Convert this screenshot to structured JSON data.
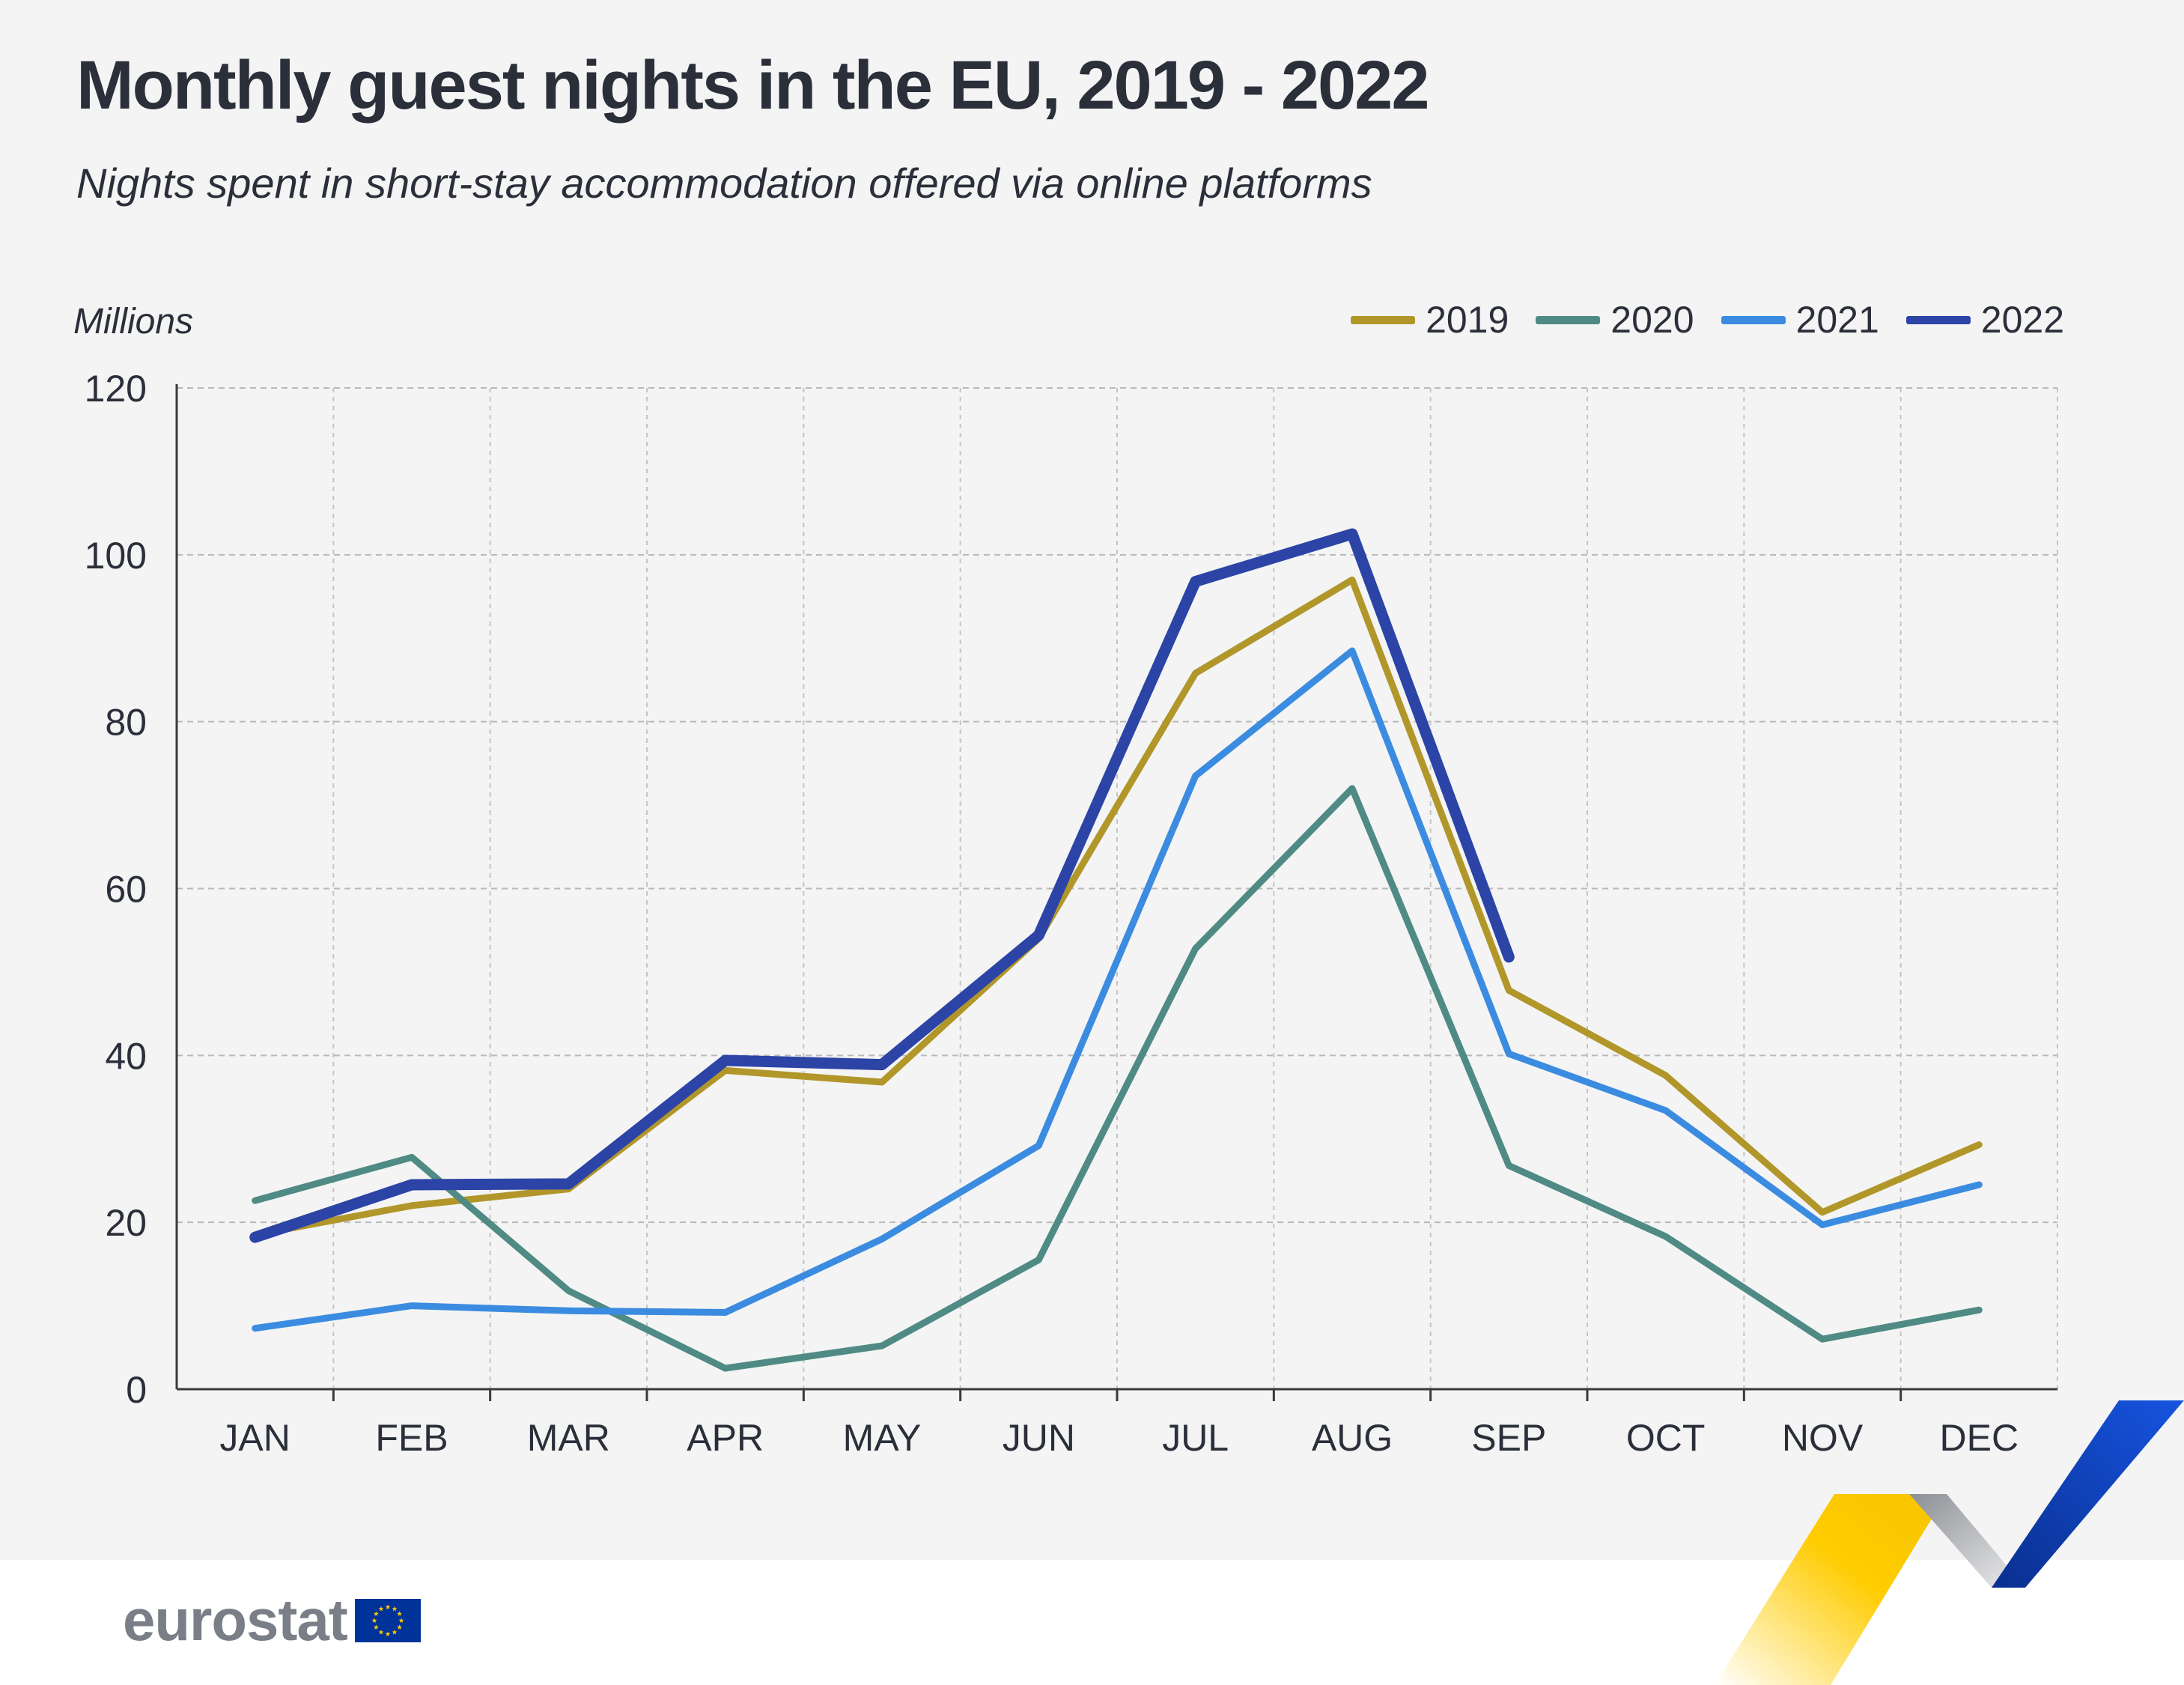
{
  "header": {
    "title": "Monthly guest nights in the EU, 2019 - 2022",
    "subtitle": "Nights spent in short-stay accommodation offered via online platforms"
  },
  "brand": {
    "logo_text": "eurostat",
    "colors": {
      "flag_blue": "#003399",
      "flag_star": "#ffcc00",
      "ribbon_yellow": "#ffcc00",
      "ribbon_blue": "#0e47cb",
      "ribbon_grey": "#a7a9ad"
    }
  },
  "chart_data": {
    "type": "line",
    "title": "Monthly guest nights in the EU, 2019 - 2022",
    "subtitle": "Nights spent in short-stay accommodation offered via online platforms",
    "ylabel": "Millions",
    "xlabel": "",
    "ylim": [
      0,
      120
    ],
    "yticks": [
      0,
      20,
      40,
      60,
      80,
      100,
      120
    ],
    "grid": true,
    "legend_position": "top-right",
    "categories": [
      "JAN",
      "FEB",
      "MAR",
      "APR",
      "MAY",
      "JUN",
      "JUL",
      "AUG",
      "SEP",
      "OCT",
      "NOV",
      "DEC"
    ],
    "series": [
      {
        "name": "2019",
        "color": "#b1962a",
        "width": 9,
        "values": [
          18.5,
          22.0,
          24.0,
          38.2,
          36.8,
          54.0,
          85.8,
          97.0,
          47.8,
          37.6,
          21.2,
          29.3
        ]
      },
      {
        "name": "2020",
        "color": "#4f8b84",
        "width": 9,
        "values": [
          22.6,
          27.8,
          11.8,
          2.5,
          5.2,
          15.5,
          52.8,
          72.0,
          26.8,
          18.3,
          6.0,
          9.5
        ]
      },
      {
        "name": "2021",
        "color": "#3b8ce0",
        "width": 9,
        "values": [
          7.3,
          10.0,
          9.4,
          9.2,
          18.0,
          29.2,
          73.5,
          88.5,
          40.2,
          33.4,
          19.7,
          24.5
        ]
      },
      {
        "name": "2022",
        "color": "#2c44a6",
        "width": 15,
        "values": [
          18.2,
          24.5,
          24.6,
          39.4,
          38.9,
          54.4,
          96.8,
          102.5,
          51.8,
          null,
          null,
          null
        ]
      }
    ]
  }
}
